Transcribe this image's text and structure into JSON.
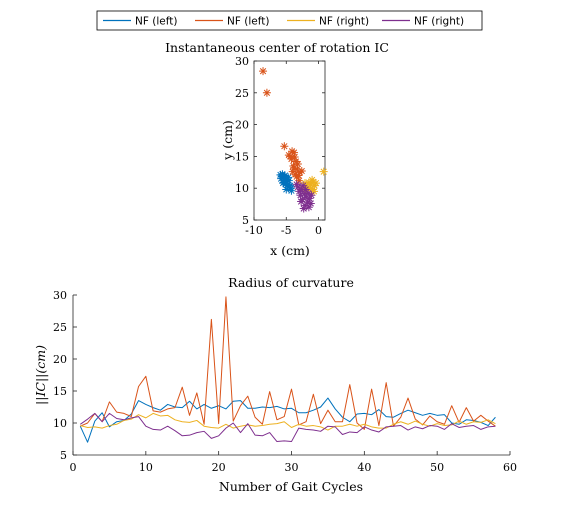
{
  "chart_data": [
    {
      "type": "scatter",
      "title": "Instantaneous center of rotation IC",
      "xlabel": "x (cm)",
      "ylabel": "y (cm)",
      "xlim": [
        -10,
        1
      ],
      "ylim": [
        5,
        30
      ],
      "xticks": [
        -10,
        -5,
        0
      ],
      "yticks": [
        5,
        10,
        15,
        20,
        25,
        30
      ],
      "marker": "asterisk",
      "grid": false,
      "series": [
        {
          "name": "NF (left)",
          "color": "#0072BD",
          "points": [
            [
              -5.6,
              12.2
            ],
            [
              -5.3,
              11.8
            ],
            [
              -5.8,
              11.5
            ],
            [
              -5.0,
              11.0
            ],
            [
              -5.5,
              10.8
            ],
            [
              -4.8,
              10.5
            ],
            [
              -5.2,
              12.0
            ],
            [
              -4.5,
              10.2
            ],
            [
              -5.7,
              11.9
            ],
            [
              -4.9,
              11.4
            ],
            [
              -5.4,
              10.9
            ],
            [
              -4.6,
              11.2
            ],
            [
              -5.1,
              10.6
            ],
            [
              -4.3,
              10.0
            ],
            [
              -5.9,
              12.1
            ],
            [
              -4.7,
              11.7
            ],
            [
              -5.2,
              11.3
            ],
            [
              -4.4,
              10.4
            ],
            [
              -5.0,
              9.8
            ],
            [
              -4.2,
              9.6
            ]
          ]
        },
        {
          "name": "NF (left)",
          "color": "#D95319",
          "points": [
            [
              -8.6,
              28.4
            ],
            [
              -8.0,
              25.0
            ],
            [
              -5.3,
              16.6
            ],
            [
              -4.6,
              15.2
            ],
            [
              -3.8,
              15.6
            ],
            [
              -4.2,
              14.6
            ],
            [
              -3.5,
              14.2
            ],
            [
              -3.9,
              13.5
            ],
            [
              -3.3,
              13.0
            ],
            [
              -4.0,
              12.6
            ],
            [
              -3.6,
              12.2
            ],
            [
              -3.1,
              12.0
            ],
            [
              -3.4,
              11.8
            ],
            [
              -4.4,
              15.0
            ],
            [
              -3.7,
              14.9
            ],
            [
              -3.2,
              13.8
            ],
            [
              -2.9,
              12.5
            ],
            [
              -3.0,
              11.2
            ],
            [
              -2.6,
              12.7
            ],
            [
              -3.8,
              13.2
            ],
            [
              -4.1,
              15.8
            ]
          ]
        },
        {
          "name": "NF (right)",
          "color": "#EDB120",
          "points": [
            [
              0.8,
              12.6
            ],
            [
              -0.8,
              11.0
            ],
            [
              -1.2,
              10.6
            ],
            [
              -0.6,
              10.4
            ],
            [
              -1.5,
              10.9
            ],
            [
              -0.9,
              9.8
            ],
            [
              -1.7,
              10.2
            ],
            [
              -2.1,
              10.8
            ],
            [
              -1.0,
              11.3
            ],
            [
              -1.9,
              9.6
            ],
            [
              -0.4,
              10.8
            ],
            [
              -2.4,
              10.0
            ],
            [
              -1.3,
              9.9
            ],
            [
              -0.7,
              9.5
            ]
          ]
        },
        {
          "name": "NF (right)",
          "color": "#7E2F8E",
          "points": [
            [
              -3.2,
              10.2
            ],
            [
              -2.6,
              9.8
            ],
            [
              -2.2,
              9.1
            ],
            [
              -1.9,
              8.6
            ],
            [
              -2.5,
              8.2
            ],
            [
              -1.7,
              7.8
            ],
            [
              -2.1,
              7.3
            ],
            [
              -1.5,
              7.0
            ],
            [
              -2.3,
              6.8
            ],
            [
              -2.8,
              8.9
            ],
            [
              -3.0,
              9.5
            ],
            [
              -1.4,
              8.4
            ],
            [
              -1.2,
              7.6
            ],
            [
              -2.0,
              9.8
            ],
            [
              -2.7,
              7.9
            ],
            [
              -1.6,
              9.2
            ],
            [
              -3.4,
              10.6
            ],
            [
              -1.1,
              8.9
            ],
            [
              -2.4,
              10.4
            ]
          ]
        }
      ]
    },
    {
      "type": "line",
      "title": "Radius of curvature",
      "xlabel": "Number of Gait Cycles",
      "ylabel": "||IC||(cm)",
      "xlim": [
        0,
        60
      ],
      "ylim": [
        5,
        30
      ],
      "xticks": [
        0,
        10,
        20,
        30,
        40,
        50,
        60
      ],
      "yticks": [
        5,
        10,
        15,
        20,
        25,
        30
      ],
      "grid": false,
      "x": [
        1,
        2,
        3,
        4,
        5,
        6,
        7,
        8,
        9,
        10,
        11,
        12,
        13,
        14,
        15,
        16,
        17,
        18,
        19,
        20,
        21,
        22,
        23,
        24,
        25,
        26,
        27,
        28,
        29,
        30,
        31,
        32,
        33,
        34,
        35,
        36,
        37,
        38,
        39,
        40,
        41,
        42,
        43,
        44,
        45,
        46,
        47,
        48,
        49,
        50,
        51,
        52,
        53,
        54,
        55,
        56,
        57,
        58
      ],
      "series": [
        {
          "name": "NF (left)",
          "color": "#0072BD",
          "values": [
            9.5,
            7.0,
            10.3,
            11.6,
            9.4,
            10.2,
            10.4,
            11.4,
            13.5,
            12.9,
            12.4,
            12.0,
            12.9,
            12.5,
            12.4,
            13.4,
            12.2,
            12.9,
            12.3,
            12.7,
            12.2,
            13.4,
            13.5,
            12.3,
            12.3,
            12.5,
            12.4,
            12.6,
            12.2,
            12.3,
            11.6,
            11.6,
            12.0,
            12.5,
            13.9,
            12.2,
            10.9,
            10.2,
            11.4,
            11.5,
            11.3,
            12.1,
            11.0,
            10.9,
            11.5,
            12.0,
            11.6,
            11.2,
            11.5,
            11.2,
            11.3,
            10.0,
            9.8,
            10.5,
            10.4,
            10.1,
            9.6,
            10.9
          ]
        },
        {
          "name": "NF (left)",
          "color": "#D95319",
          "values": [
            9.5,
            10.0,
            11.5,
            10.2,
            13.3,
            11.7,
            11.5,
            11.0,
            15.7,
            17.3,
            11.9,
            11.7,
            12.2,
            12.4,
            15.6,
            11.2,
            14.7,
            9.8,
            26.2,
            9.9,
            29.7,
            10.3,
            12.7,
            14.2,
            10.9,
            9.8,
            14.9,
            10.5,
            11.0,
            15.3,
            9.7,
            10.2,
            14.5,
            9.9,
            12.0,
            10.2,
            10.2,
            16.0,
            10.0,
            9.0,
            15.3,
            9.6,
            16.3,
            9.5,
            10.9,
            13.9,
            10.6,
            9.7,
            11.1,
            10.2,
            9.8,
            12.7,
            10.1,
            12.4,
            10.3,
            11.2,
            10.3,
            9.5
          ]
        },
        {
          "name": "NF (right)",
          "color": "#EDB120",
          "values": [
            9.6,
            9.3,
            9.4,
            9.2,
            9.6,
            9.8,
            10.4,
            10.6,
            11.3,
            10.8,
            11.5,
            11.1,
            11.2,
            10.5,
            10.2,
            10.1,
            10.4,
            9.5,
            9.3,
            9.2,
            9.8,
            9.2,
            9.5,
            9.7,
            9.5,
            9.6,
            9.8,
            9.9,
            10.2,
            9.3,
            9.8,
            9.5,
            9.6,
            9.4,
            8.9,
            9.5,
            9.5,
            9.8,
            9.5,
            9.8,
            9.4,
            9.2,
            9.2,
            9.8,
            10.2,
            9.8,
            10.3,
            9.8,
            9.5,
            9.9,
            9.6,
            9.7,
            10.3,
            9.8,
            10.2,
            10.1,
            10.5,
            9.9
          ]
        },
        {
          "name": "NF (right)",
          "color": "#7E2F8E",
          "values": [
            9.8,
            10.6,
            11.5,
            10.2,
            11.5,
            10.7,
            10.5,
            10.8,
            11.0,
            9.5,
            9.0,
            8.9,
            9.5,
            8.8,
            8.0,
            8.1,
            8.5,
            8.7,
            7.6,
            8.0,
            9.2,
            10.0,
            8.5,
            9.9,
            8.1,
            8.0,
            8.5,
            7.1,
            7.2,
            7.1,
            9.2,
            9.0,
            8.9,
            8.7,
            9.5,
            9.4,
            8.2,
            8.6,
            8.5,
            9.4,
            8.9,
            8.6,
            9.4,
            9.5,
            9.6,
            8.9,
            9.4,
            9.1,
            9.6,
            9.5,
            9.0,
            9.9,
            9.3,
            9.5,
            9.6,
            9.0,
            9.4,
            9.5
          ]
        }
      ]
    }
  ]
}
